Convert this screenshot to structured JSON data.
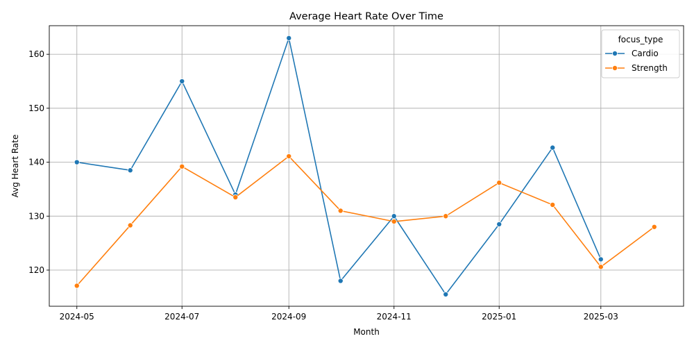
{
  "chart_data": {
    "type": "line",
    "title": "Average Heart Rate Over Time",
    "xlabel": "Month",
    "ylabel": "Avg Heart Rate",
    "grid": true,
    "legend": {
      "title": "focus_type",
      "placement": "top-right"
    },
    "xlim": [
      "2024-04-15",
      "2025-04-18"
    ],
    "ylim": [
      113.3,
      165.3
    ],
    "x_ticks": [
      "2024-05",
      "2024-07",
      "2024-09",
      "2024-11",
      "2025-01",
      "2025-03"
    ],
    "y_ticks": [
      120,
      130,
      140,
      150,
      160
    ],
    "series": [
      {
        "name": "Cardio",
        "color": "#1f77b4",
        "points": [
          {
            "x": "2024-05-01",
            "y": 140.0
          },
          {
            "x": "2024-06-01",
            "y": 138.5
          },
          {
            "x": "2024-07-01",
            "y": 155.0
          },
          {
            "x": "2024-08-01",
            "y": 134.0
          },
          {
            "x": "2024-09-01",
            "y": 163.0
          },
          {
            "x": "2024-10-01",
            "y": 118.0
          },
          {
            "x": "2024-11-01",
            "y": 130.0
          },
          {
            "x": "2024-12-01",
            "y": 115.5
          },
          {
            "x": "2025-01-01",
            "y": 128.5
          },
          {
            "x": "2025-02-01",
            "y": 142.7
          },
          {
            "x": "2025-03-01",
            "y": 122.0
          }
        ]
      },
      {
        "name": "Strength",
        "color": "#ff7f0e",
        "points": [
          {
            "x": "2024-05-01",
            "y": 117.1
          },
          {
            "x": "2024-06-01",
            "y": 128.3
          },
          {
            "x": "2024-07-01",
            "y": 139.2
          },
          {
            "x": "2024-08-01",
            "y": 133.5
          },
          {
            "x": "2024-09-01",
            "y": 141.1
          },
          {
            "x": "2024-10-01",
            "y": 131.0
          },
          {
            "x": "2024-11-01",
            "y": 129.0
          },
          {
            "x": "2024-12-01",
            "y": 130.0
          },
          {
            "x": "2025-01-01",
            "y": 136.2
          },
          {
            "x": "2025-02-01",
            "y": 132.1
          },
          {
            "x": "2025-03-01",
            "y": 120.6
          },
          {
            "x": "2025-04-01",
            "y": 128.0
          }
        ]
      }
    ]
  }
}
